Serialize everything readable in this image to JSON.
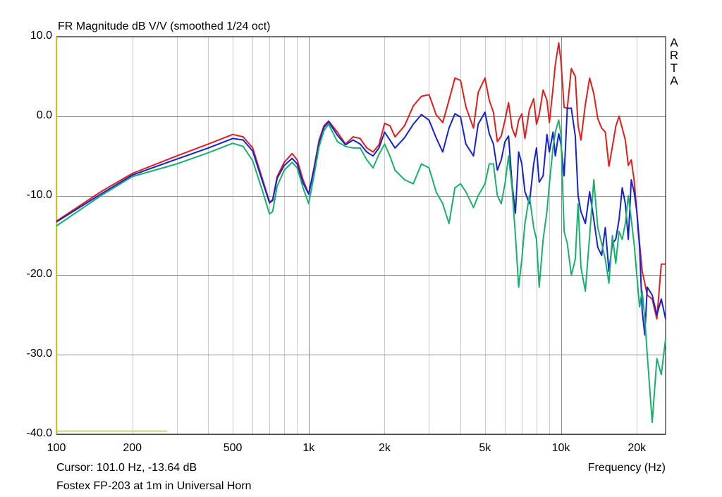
{
  "chart_data": {
    "type": "line",
    "title": "FR Magnitude dB V/V (smoothed 1/24 oct)",
    "xlabel": "Frequency (Hz)",
    "ylabel": "",
    "x_scale": "log",
    "xlim": [
      100,
      26000
    ],
    "ylim": [
      -40,
      10
    ],
    "grid": true,
    "x_ticks": [
      {
        "value": 100,
        "label": "100"
      },
      {
        "value": 200,
        "label": "200"
      },
      {
        "value": 500,
        "label": "500"
      },
      {
        "value": 1000,
        "label": "1k"
      },
      {
        "value": 2000,
        "label": "2k"
      },
      {
        "value": 5000,
        "label": "5k"
      },
      {
        "value": 10000,
        "label": "10k"
      },
      {
        "value": 20000,
        "label": "20k"
      }
    ],
    "y_ticks": [
      {
        "value": 10,
        "label": "10.0"
      },
      {
        "value": 0,
        "label": "0.0"
      },
      {
        "value": -10,
        "label": "-10.0"
      },
      {
        "value": -20,
        "label": "-20.0"
      },
      {
        "value": -30,
        "label": "-30.0"
      },
      {
        "value": -40,
        "label": "-40.0"
      }
    ],
    "series": [
      {
        "color": "#e31c1c",
        "x": [
          100,
          150,
          200,
          300,
          400,
          500,
          550,
          600,
          650,
          700,
          720,
          750,
          800,
          860,
          900,
          950,
          1000,
          1050,
          1100,
          1150,
          1200,
          1300,
          1400,
          1500,
          1600,
          1700,
          1800,
          1900,
          2000,
          2100,
          2200,
          2400,
          2600,
          2800,
          3000,
          3200,
          3400,
          3600,
          3800,
          4000,
          4200,
          4500,
          4700,
          5000,
          5200,
          5400,
          5600,
          5800,
          6000,
          6200,
          6400,
          6600,
          6800,
          7000,
          7200,
          7500,
          7800,
          8000,
          8200,
          8500,
          8800,
          9000,
          9300,
          9500,
          9800,
          10000,
          10300,
          10600,
          11000,
          11400,
          11700,
          12000,
          12500,
          13000,
          13500,
          14000,
          14500,
          15000,
          15500,
          16000,
          16500,
          17000,
          17500,
          18000,
          18500,
          19000,
          19500,
          20000,
          20500,
          21000,
          21500,
          22000,
          23000,
          24000,
          25000,
          26000
        ],
        "y": [
          -13.2,
          -9.5,
          -7.2,
          -5.0,
          -3.5,
          -2.3,
          -2.6,
          -4.0,
          -7.5,
          -10.8,
          -10.5,
          -7.6,
          -5.8,
          -4.7,
          -5.5,
          -8.0,
          -9.8,
          -6.5,
          -3.0,
          -1.2,
          -0.6,
          -2.0,
          -3.5,
          -2.6,
          -2.8,
          -4.0,
          -4.5,
          -3.6,
          -0.9,
          -1.2,
          -2.6,
          -1.2,
          1.3,
          2.5,
          2.7,
          0.2,
          -0.8,
          2.0,
          4.8,
          4.5,
          1.2,
          -1.5,
          3.0,
          4.8,
          2.0,
          0.5,
          -3.2,
          -2.5,
          -0.5,
          1.7,
          -1.5,
          -2.6,
          -0.5,
          0.3,
          -2.8,
          0.8,
          2.2,
          -1.0,
          0.2,
          3.3,
          2.0,
          -0.8,
          3.5,
          6.5,
          9.2,
          7.0,
          1.1,
          1.0,
          6.0,
          5.0,
          -1.2,
          -3.0,
          1.5,
          4.8,
          2.8,
          -0.3,
          -1.5,
          -2.0,
          -6.3,
          -3.8,
          -1.3,
          0.0,
          -1.5,
          -3.0,
          -6.2,
          -5.5,
          -8.0,
          -12.0,
          -16.0,
          -19.5,
          -21.0,
          -22.5,
          -23.0,
          -25.5,
          -18.6,
          -18.6
        ]
      },
      {
        "color": "#1521d6",
        "x": [
          100,
          150,
          200,
          300,
          400,
          500,
          550,
          600,
          650,
          700,
          720,
          750,
          800,
          860,
          900,
          950,
          1000,
          1050,
          1100,
          1150,
          1200,
          1300,
          1400,
          1500,
          1600,
          1700,
          1800,
          1900,
          2000,
          2100,
          2200,
          2400,
          2600,
          2800,
          3000,
          3200,
          3400,
          3600,
          3800,
          4000,
          4200,
          4500,
          4700,
          5000,
          5200,
          5400,
          5600,
          5800,
          6000,
          6200,
          6400,
          6600,
          6800,
          7000,
          7200,
          7500,
          7800,
          8000,
          8200,
          8500,
          8800,
          9000,
          9300,
          9500,
          9800,
          10000,
          10300,
          10600,
          11000,
          11400,
          11700,
          12000,
          12500,
          13000,
          13500,
          14000,
          14500,
          15000,
          15500,
          16000,
          16500,
          17000,
          17500,
          18000,
          18500,
          19000,
          19500,
          20000,
          20500,
          21000,
          21500,
          22000,
          23000,
          24000,
          25000,
          26000
        ],
        "y": [
          -13.3,
          -9.8,
          -7.4,
          -5.4,
          -4.0,
          -2.8,
          -3.0,
          -4.4,
          -7.8,
          -10.9,
          -10.6,
          -7.8,
          -6.2,
          -5.3,
          -6.0,
          -8.4,
          -9.8,
          -6.7,
          -3.3,
          -1.4,
          -0.7,
          -2.4,
          -3.6,
          -3.0,
          -3.5,
          -4.5,
          -5.0,
          -4.0,
          -2.0,
          -3.0,
          -4.0,
          -2.7,
          -1.0,
          0.2,
          -0.5,
          -2.7,
          -4.5,
          -1.5,
          0.3,
          -0.1,
          -3.5,
          -5.0,
          -1.0,
          0.5,
          -2.2,
          -3.5,
          -6.8,
          -5.5,
          -3.2,
          -2.5,
          -8.5,
          -12.2,
          -4.5,
          -6.0,
          -9.5,
          -11.0,
          -6.0,
          -4.0,
          -8.3,
          -7.5,
          -2.3,
          -4.5,
          -2.0,
          -5.0,
          -2.2,
          -3.5,
          -7.5,
          1.0,
          1.0,
          -2.5,
          -10.0,
          -12.0,
          -13.5,
          -9.5,
          -13.0,
          -16.5,
          -17.5,
          -14.0,
          -19.5,
          -16.0,
          -15.5,
          -13.0,
          -9.0,
          -11.0,
          -15.5,
          -8.0,
          -9.5,
          -12.0,
          -16.5,
          -24.5,
          -27.5,
          -21.5,
          -22.5,
          -25.0,
          -23.0,
          -25.5
        ]
      },
      {
        "color": "#16b26a",
        "x": [
          100,
          150,
          200,
          300,
          400,
          500,
          550,
          600,
          650,
          700,
          720,
          750,
          800,
          860,
          900,
          950,
          1000,
          1050,
          1100,
          1150,
          1200,
          1300,
          1400,
          1500,
          1600,
          1700,
          1800,
          1900,
          2000,
          2100,
          2200,
          2400,
          2600,
          2800,
          3000,
          3200,
          3400,
          3600,
          3800,
          4000,
          4200,
          4500,
          4700,
          5000,
          5200,
          5400,
          5600,
          5800,
          6000,
          6200,
          6400,
          6600,
          6800,
          7000,
          7200,
          7500,
          7800,
          8000,
          8200,
          8500,
          8800,
          9000,
          9300,
          9500,
          9800,
          10000,
          10300,
          10600,
          11000,
          11400,
          11700,
          12000,
          12500,
          13000,
          13500,
          14000,
          14500,
          15000,
          15500,
          16000,
          16500,
          17000,
          17500,
          18000,
          18500,
          19000,
          19500,
          20000,
          20500,
          21000,
          21500,
          22000,
          23000,
          24000,
          25000,
          26000
        ],
        "y": [
          -13.8,
          -10.0,
          -7.6,
          -6.0,
          -4.6,
          -3.4,
          -3.8,
          -5.6,
          -9.0,
          -12.3,
          -12.0,
          -8.8,
          -6.8,
          -5.8,
          -6.5,
          -9.0,
          -11.0,
          -7.5,
          -3.8,
          -1.8,
          -1.0,
          -3.2,
          -3.8,
          -4.0,
          -4.0,
          -5.5,
          -6.5,
          -4.8,
          -3.5,
          -5.0,
          -6.8,
          -8.0,
          -8.5,
          -6.0,
          -6.5,
          -9.5,
          -11.0,
          -13.5,
          -9.0,
          -8.5,
          -9.5,
          -11.5,
          -10.0,
          -8.5,
          -6.0,
          -6.0,
          -10.0,
          -11.0,
          -8.5,
          -5.0,
          -9.0,
          -15.0,
          -21.5,
          -18.0,
          -13.5,
          -10.0,
          -14.0,
          -15.5,
          -21.5,
          -15.5,
          -12.0,
          -8.5,
          -4.0,
          -2.0,
          -0.5,
          -2.2,
          -14.5,
          -16.0,
          -20.0,
          -18.0,
          -11.0,
          -19.0,
          -22.0,
          -15.0,
          -8.0,
          -14.0,
          -16.0,
          -18.0,
          -21.0,
          -15.0,
          -18.5,
          -14.5,
          -15.5,
          -13.5,
          -10.0,
          -13.0,
          -16.0,
          -20.0,
          -24.0,
          -22.0,
          -25.5,
          -30.0,
          -38.5,
          -30.5,
          -32.5,
          -28.0
        ]
      },
      {
        "color": "#c8c81e",
        "x": [
          100,
          275
        ],
        "y": [
          -39.6,
          -39.6
        ]
      }
    ]
  },
  "side_label": [
    "A",
    "R",
    "T",
    "A"
  ],
  "cursor_text": "Cursor: 101.0 Hz, -13.64 dB",
  "caption": "Fostex FP-203 at 1m in Universal Horn"
}
